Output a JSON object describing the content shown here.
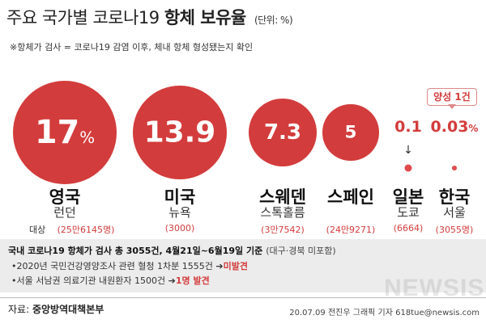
{
  "header": {
    "title_prefix": "주요 국가별 코로나19",
    "title_bold": "항체 보유율",
    "unit": "(단위: %)",
    "note": "※항체가 검사 = 코로나19 감염 이후, 체내 항체 형성됐는지 확인"
  },
  "chart_data": {
    "type": "bubble",
    "title": "주요 국가별 코로나19 항체 보유율",
    "unit": "%",
    "categories": [
      "영국",
      "미국",
      "스웨덴",
      "스페인",
      "일본",
      "한국"
    ],
    "cities": [
      "런던",
      "뉴욕",
      "스톡홀름",
      "",
      "도쿄",
      "서울"
    ],
    "values": [
      17,
      13.9,
      7.3,
      5,
      0.1,
      0.03
    ],
    "value_labels": [
      "17",
      "13.9",
      "7.3",
      "5",
      "0.1",
      "0.03"
    ],
    "samples": [
      "(25만6145명)",
      "(3000)",
      "(3만7542)",
      "(24만9271)",
      "(6664)",
      "(3055명)"
    ],
    "sample_lead": "대상",
    "annotation": "양성 1건",
    "color": "#d33c3c"
  },
  "panel": {
    "head": "국내 코로나19  항체가 검사 총 3055건, 4월21일~6월19일 기준",
    "head_sub": "(대구·경북 미포함)",
    "bullets": [
      {
        "text": "•2020년 국민건강영양조사 관련 혈청 1차분 1555건 ➔",
        "result": "미발견"
      },
      {
        "text": "•서울 서남권 의료기관 내원환자 1500건 ➔",
        "result": "1명 발견"
      }
    ]
  },
  "footer": {
    "source_label": "자료:",
    "source": "중앙방역대책본부",
    "credit": "20.07.09 전진우 그래픽 기자 618tue@newsis.com",
    "watermark": "NEWSIS"
  }
}
